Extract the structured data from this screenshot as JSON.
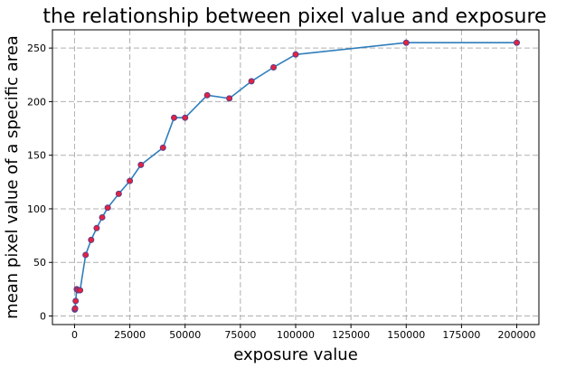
{
  "chart_data": {
    "type": "line",
    "title": "the relationship between pixel value and exposure",
    "xlabel": "exposure value",
    "ylabel": "mean pixel value of a specific area",
    "xlim": [
      -10000,
      210000
    ],
    "ylim": [
      -8,
      267
    ],
    "xticks": [
      0,
      25000,
      50000,
      75000,
      100000,
      125000,
      150000,
      175000,
      200000
    ],
    "xtick_labels": [
      "0",
      "25000",
      "50000",
      "75000",
      "100000",
      "125000",
      "150000",
      "175000",
      "200000"
    ],
    "yticks": [
      0,
      50,
      100,
      150,
      200,
      250
    ],
    "ytick_labels": [
      "0",
      "50",
      "100",
      "150",
      "200",
      "250"
    ],
    "grid": true,
    "grid_style": "dashed",
    "legend": "none",
    "line_color": "#2f7ebc",
    "marker_face_color": "#e8213f",
    "marker_edge_color": "#5a3f8a",
    "series": [
      {
        "x": [
          100,
          250,
          500,
          1000,
          1500,
          2500,
          5000,
          7500,
          10000,
          12500,
          15000,
          20000,
          25000,
          30000,
          40000,
          45000,
          50000,
          60000,
          70000,
          80000,
          90000,
          100000,
          150000,
          200000
        ],
        "y": [
          6,
          7,
          14,
          25,
          24,
          24,
          57,
          71,
          82,
          92,
          101,
          114,
          126,
          141,
          157,
          185,
          185,
          206,
          203,
          219,
          232,
          244,
          255,
          255
        ]
      }
    ]
  }
}
